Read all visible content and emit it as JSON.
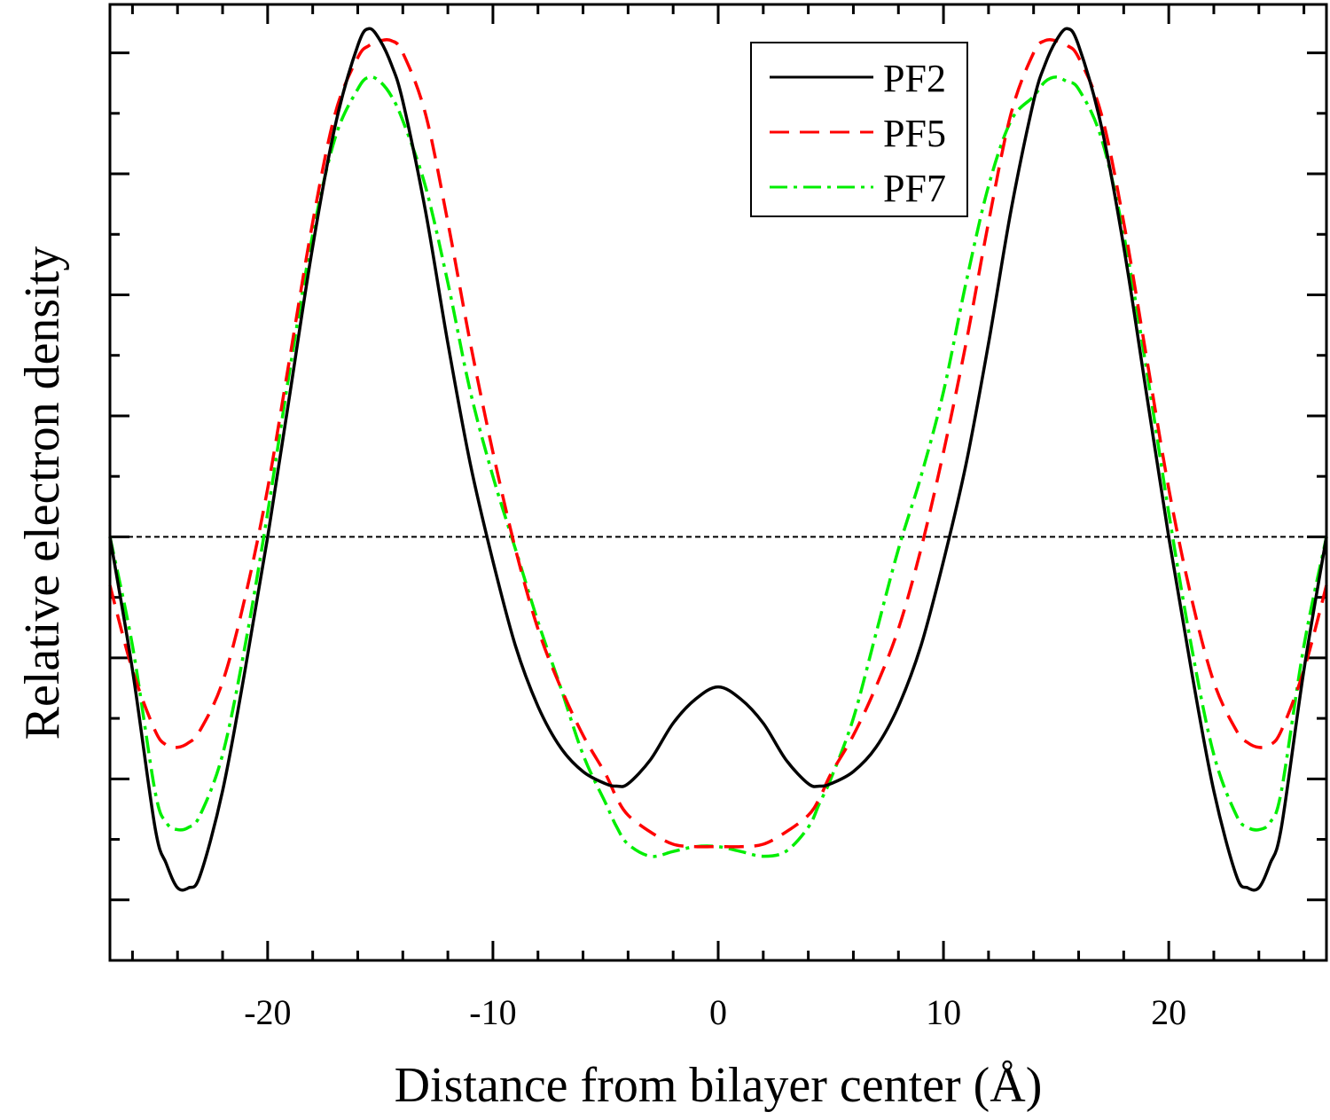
{
  "chart_data": {
    "type": "line",
    "title": "",
    "xlabel": "Distance from bilayer center (Å)",
    "ylabel": "Relative electron density",
    "xlim": [
      -27,
      27
    ],
    "ylim": [
      -1.75,
      2.2
    ],
    "x_ticks": [
      -20,
      -10,
      0,
      10,
      20
    ],
    "x_tick_labels": [
      "-20",
      "-10",
      "0",
      "10",
      "20"
    ],
    "y_tick_labels_shown": false,
    "reference_line": {
      "y": 0,
      "style": "dashed",
      "color": "#000000"
    },
    "legend": {
      "placement": "top-right-inner",
      "entries": [
        "PF2",
        "PF5",
        "PF7"
      ]
    },
    "grid": false,
    "x": [
      -27,
      -26,
      -25,
      -24.5,
      -24,
      -23.5,
      -23,
      -22,
      -21,
      -20,
      -19,
      -18,
      -17,
      -16,
      -15.5,
      -15,
      -14.5,
      -14,
      -13,
      -12,
      -11,
      -10,
      -9,
      -8,
      -7,
      -6,
      -5,
      -4.5,
      -4,
      -3,
      -2,
      -1,
      0,
      1,
      2,
      3,
      4,
      4.5,
      5,
      6,
      7,
      8,
      9,
      10,
      11,
      12,
      13,
      14,
      14.5,
      15,
      15.5,
      16,
      17,
      18,
      19,
      20,
      21,
      22,
      23,
      23.5,
      24,
      24.5,
      25,
      26,
      27
    ],
    "series": [
      {
        "name": "PF2",
        "color": "#000000",
        "dash": "solid",
        "values": [
          0,
          -0.55,
          -1.2,
          -1.35,
          -1.45,
          -1.45,
          -1.4,
          -1.05,
          -0.55,
          0.0,
          0.6,
          1.2,
          1.7,
          2.03,
          2.1,
          2.05,
          1.95,
          1.8,
          1.35,
          0.8,
          0.3,
          -0.1,
          -0.45,
          -0.7,
          -0.87,
          -0.97,
          -1.02,
          -1.03,
          -1.02,
          -0.92,
          -0.77,
          -0.67,
          -0.62,
          -0.67,
          -0.77,
          -0.92,
          -1.02,
          -1.03,
          -1.02,
          -0.97,
          -0.87,
          -0.7,
          -0.45,
          -0.1,
          0.3,
          0.8,
          1.35,
          1.8,
          1.95,
          2.05,
          2.1,
          2.03,
          1.7,
          1.2,
          0.6,
          0.0,
          -0.55,
          -1.05,
          -1.4,
          -1.45,
          -1.45,
          -1.35,
          -1.2,
          -0.55,
          0
        ]
      },
      {
        "name": "PF5",
        "color": "#ff0000",
        "dash": "dashed",
        "values": [
          -0.2,
          -0.55,
          -0.8,
          -0.86,
          -0.87,
          -0.85,
          -0.8,
          -0.6,
          -0.25,
          0.2,
          0.75,
          1.3,
          1.75,
          1.98,
          2.03,
          2.05,
          2.05,
          2.0,
          1.75,
          1.3,
          0.8,
          0.35,
          -0.05,
          -0.38,
          -0.62,
          -0.82,
          -0.98,
          -1.08,
          -1.15,
          -1.22,
          -1.27,
          -1.28,
          -1.28,
          -1.28,
          -1.27,
          -1.22,
          -1.15,
          -1.08,
          -0.98,
          -0.82,
          -0.62,
          -0.38,
          -0.05,
          0.35,
          0.8,
          1.3,
          1.75,
          2.0,
          2.05,
          2.05,
          2.03,
          1.98,
          1.75,
          1.3,
          0.75,
          0.2,
          -0.25,
          -0.6,
          -0.8,
          -0.85,
          -0.87,
          -0.86,
          -0.8,
          -0.55,
          -0.2
        ]
      },
      {
        "name": "PF7",
        "color": "#00ee00",
        "dash": "dash-dot",
        "values": [
          0,
          -0.45,
          -1.05,
          -1.18,
          -1.21,
          -1.2,
          -1.15,
          -0.9,
          -0.45,
          0.1,
          0.7,
          1.25,
          1.65,
          1.85,
          1.9,
          1.88,
          1.82,
          1.72,
          1.45,
          1.05,
          0.6,
          0.25,
          -0.05,
          -0.35,
          -0.62,
          -0.9,
          -1.1,
          -1.2,
          -1.27,
          -1.32,
          -1.3,
          -1.28,
          -1.28,
          -1.3,
          -1.32,
          -1.3,
          -1.2,
          -1.1,
          -1.0,
          -0.75,
          -0.4,
          -0.05,
          0.25,
          0.6,
          1.05,
          1.45,
          1.72,
          1.82,
          1.88,
          1.9,
          1.88,
          1.85,
          1.65,
          1.25,
          0.7,
          0.1,
          -0.45,
          -0.9,
          -1.15,
          -1.2,
          -1.21,
          -1.18,
          -1.05,
          -0.45,
          0
        ]
      }
    ]
  }
}
